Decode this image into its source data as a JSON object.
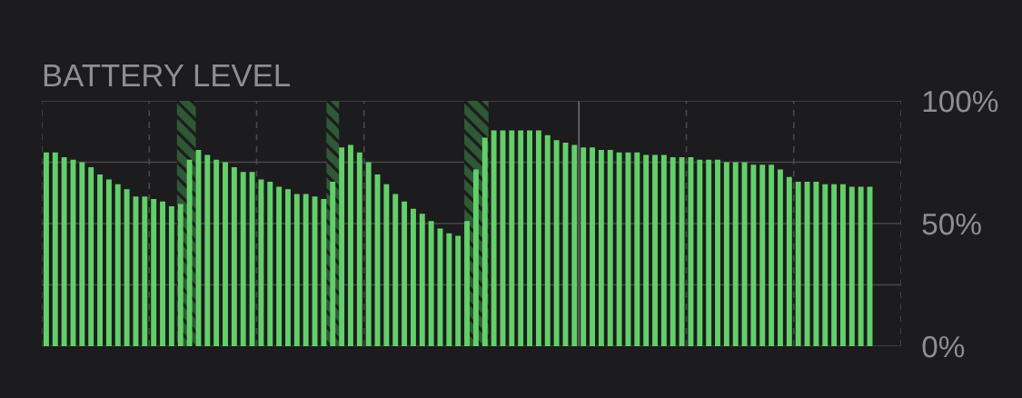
{
  "chart_data": {
    "type": "bar",
    "title": "BATTERY LEVEL",
    "categories": [
      null,
      null,
      null,
      null,
      null,
      null,
      null,
      null,
      null,
      null,
      null,
      null,
      null,
      null,
      null,
      null,
      null,
      null,
      null,
      null,
      null,
      null,
      null,
      null,
      null,
      null,
      null,
      null,
      null,
      null,
      null,
      null,
      null,
      null,
      null,
      null,
      null,
      null,
      null,
      null,
      null,
      null,
      null,
      null,
      null,
      null,
      null,
      null,
      null,
      null,
      null,
      null,
      null,
      null,
      null,
      null,
      null,
      null,
      null,
      null,
      null,
      null,
      null,
      null,
      null,
      null,
      null,
      null,
      null,
      null,
      null,
      null,
      null,
      null,
      null,
      null,
      null,
      null,
      null,
      null,
      null,
      null,
      null,
      null,
      null,
      null,
      null,
      null,
      null,
      null,
      null,
      null,
      null,
      null,
      null,
      null
    ],
    "values": [
      79,
      79,
      77,
      76,
      75,
      73,
      70,
      68,
      66,
      64,
      61,
      61,
      60,
      59,
      57,
      58,
      76,
      80,
      78,
      76,
      75,
      73,
      71,
      71,
      68,
      67,
      65,
      64,
      62,
      62,
      61,
      60,
      67,
      81,
      82,
      79,
      75,
      70,
      66,
      62,
      59,
      56,
      54,
      51,
      48,
      46,
      45,
      51,
      72,
      85,
      88,
      88,
      88,
      88,
      88,
      88,
      86,
      84,
      83,
      82,
      81,
      81,
      80,
      80,
      79,
      79,
      79,
      78,
      78,
      78,
      77,
      77,
      77,
      76,
      76,
      76,
      75,
      75,
      75,
      74,
      74,
      74,
      72,
      69,
      67,
      67,
      67,
      66,
      66,
      66,
      65,
      65,
      65,
      null,
      null,
      null
    ],
    "color": "#63cf69",
    "ylim": [
      0,
      100
    ],
    "yticks": [
      {
        "value": 0,
        "label": "0%"
      },
      {
        "value": 25,
        "label": null
      },
      {
        "value": 50,
        "label": "50%"
      },
      {
        "value": 75,
        "label": null
      },
      {
        "value": 100,
        "label": "100%"
      }
    ],
    "grid": "y",
    "tick_labels": "y"
  }
}
